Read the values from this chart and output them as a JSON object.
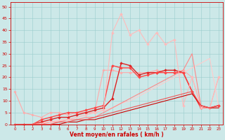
{
  "xlabel": "Vent moyen/en rafales ( km/h )",
  "xlim": [
    -0.5,
    23.5
  ],
  "ylim": [
    0,
    52
  ],
  "yticks": [
    0,
    5,
    10,
    15,
    20,
    25,
    30,
    35,
    40,
    45,
    50
  ],
  "xticks": [
    0,
    1,
    2,
    3,
    4,
    5,
    6,
    7,
    8,
    9,
    10,
    11,
    12,
    13,
    14,
    15,
    16,
    17,
    18,
    19,
    20,
    21,
    22,
    23
  ],
  "bg_color": "#cce8e8",
  "grid_color": "#99cccc",
  "lines": [
    {
      "x": [
        0,
        1,
        2,
        3,
        4,
        5,
        6,
        7,
        8,
        9,
        10,
        11,
        12,
        13,
        14,
        15,
        16,
        17,
        18,
        19,
        20,
        21,
        22,
        23
      ],
      "y": [
        14,
        5,
        4,
        3,
        5,
        5,
        4,
        5,
        5,
        5,
        23,
        23,
        22,
        22,
        22,
        22,
        23,
        22,
        22,
        23,
        20,
        8,
        7,
        20
      ],
      "color": "#ffaaaa",
      "lw": 0.8,
      "marker": "D",
      "ms": 1.8
    },
    {
      "x": [
        0,
        1,
        2,
        3,
        4,
        5,
        6,
        7,
        8,
        9,
        10,
        11,
        12,
        13,
        14,
        15,
        16,
        17,
        18,
        19,
        20,
        21,
        22,
        23
      ],
      "y": [
        0,
        0,
        0,
        1,
        1,
        2,
        2,
        3,
        4,
        5,
        6,
        7,
        9,
        10,
        12,
        14,
        16,
        18,
        20,
        22,
        24,
        26,
        28,
        8
      ],
      "color": "#ffcccc",
      "lw": 0.8,
      "marker": null,
      "ms": 0
    },
    {
      "x": [
        0,
        1,
        2,
        3,
        4,
        5,
        6,
        7,
        8,
        9,
        10,
        11,
        12,
        13,
        14,
        15,
        16,
        17,
        18,
        19,
        20,
        21,
        22,
        23
      ],
      "y": [
        0,
        0,
        0,
        0,
        1,
        1,
        2,
        2,
        3,
        3,
        5,
        7,
        9,
        11,
        13,
        15,
        17,
        19,
        21,
        23,
        30,
        8,
        7,
        8
      ],
      "color": "#ff8888",
      "lw": 0.8,
      "marker": null,
      "ms": 0
    },
    {
      "x": [
        0,
        1,
        2,
        3,
        4,
        5,
        6,
        7,
        8,
        9,
        10,
        11,
        12,
        13,
        14,
        15,
        16,
        17,
        18,
        19,
        20,
        21,
        22,
        23
      ],
      "y": [
        0,
        0,
        0,
        1,
        2,
        3,
        3,
        4,
        5,
        6,
        7,
        11,
        26,
        25,
        21,
        22,
        22,
        23,
        23,
        22,
        14,
        7,
        7,
        8
      ],
      "color": "#dd2222",
      "lw": 1.0,
      "marker": "D",
      "ms": 2.0
    },
    {
      "x": [
        0,
        1,
        2,
        3,
        4,
        5,
        6,
        7,
        8,
        9,
        10,
        11,
        12,
        13,
        14,
        15,
        16,
        17,
        18,
        19,
        20,
        21,
        22,
        23
      ],
      "y": [
        0,
        0,
        0,
        2,
        3,
        4,
        5,
        5,
        6,
        7,
        8,
        25,
        24,
        24,
        20,
        21,
        22,
        22,
        22,
        22,
        14,
        7,
        7,
        8
      ],
      "color": "#ff4444",
      "lw": 1.0,
      "marker": "D",
      "ms": 2.0
    },
    {
      "x": [
        0,
        2,
        4,
        6,
        8,
        9,
        10,
        11,
        12,
        13,
        14,
        15,
        16,
        17,
        18,
        19,
        20,
        21,
        22,
        23
      ],
      "y": [
        0,
        0,
        1,
        2,
        4,
        5,
        6,
        39,
        47,
        38,
        40,
        34,
        39,
        34,
        36,
        8,
        20,
        7,
        7,
        20
      ],
      "color": "#ffbbbb",
      "lw": 0.8,
      "marker": "D",
      "ms": 2.0
    },
    {
      "x": [
        0,
        1,
        2,
        3,
        4,
        5,
        6,
        7,
        8,
        9,
        10,
        11,
        12,
        13,
        14,
        15,
        16,
        17,
        18,
        19,
        20,
        21,
        22,
        23
      ],
      "y": [
        0,
        0,
        0,
        0,
        0,
        0,
        1,
        1,
        2,
        2,
        3,
        4,
        5,
        6,
        7,
        8,
        9,
        10,
        11,
        12,
        13,
        8,
        7,
        7
      ],
      "color": "#cc0000",
      "lw": 0.8,
      "marker": null,
      "ms": 0
    },
    {
      "x": [
        0,
        1,
        2,
        3,
        4,
        5,
        6,
        7,
        8,
        9,
        10,
        11,
        12,
        13,
        14,
        15,
        16,
        17,
        18,
        19,
        20,
        21,
        22,
        23
      ],
      "y": [
        0,
        0,
        0,
        0,
        0,
        1,
        1,
        2,
        2,
        3,
        4,
        5,
        6,
        7,
        8,
        9,
        10,
        11,
        12,
        13,
        14,
        8,
        7,
        8
      ],
      "color": "#ee5555",
      "lw": 0.8,
      "marker": null,
      "ms": 0
    }
  ]
}
